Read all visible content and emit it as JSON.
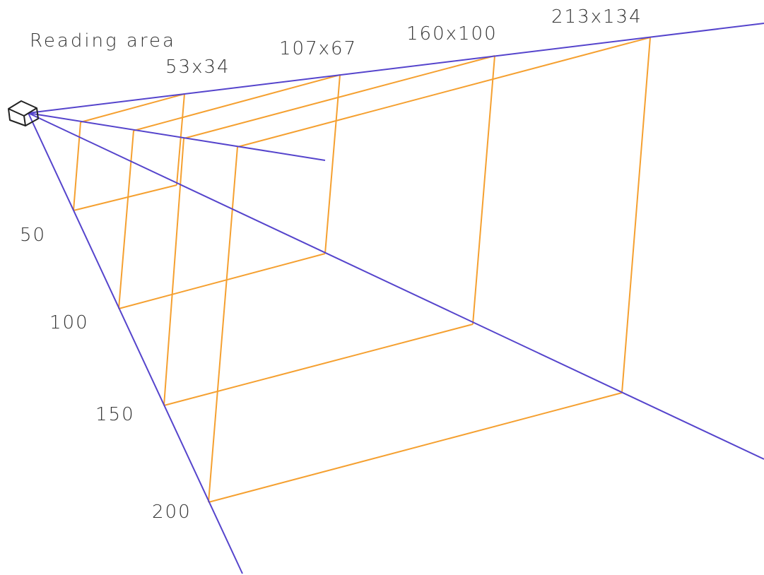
{
  "title": "Reading area",
  "area_labels": [
    "53x34",
    "107x67",
    "160x100",
    "213x134"
  ],
  "distance_labels": [
    "50",
    "100",
    "150",
    "200"
  ],
  "colors": {
    "field_of_view_lines": "#5544cc",
    "reading_area_frames": "#f5a030",
    "camera": "#222222",
    "text": "#333333"
  },
  "icons": {
    "camera": "camera-icon"
  }
}
